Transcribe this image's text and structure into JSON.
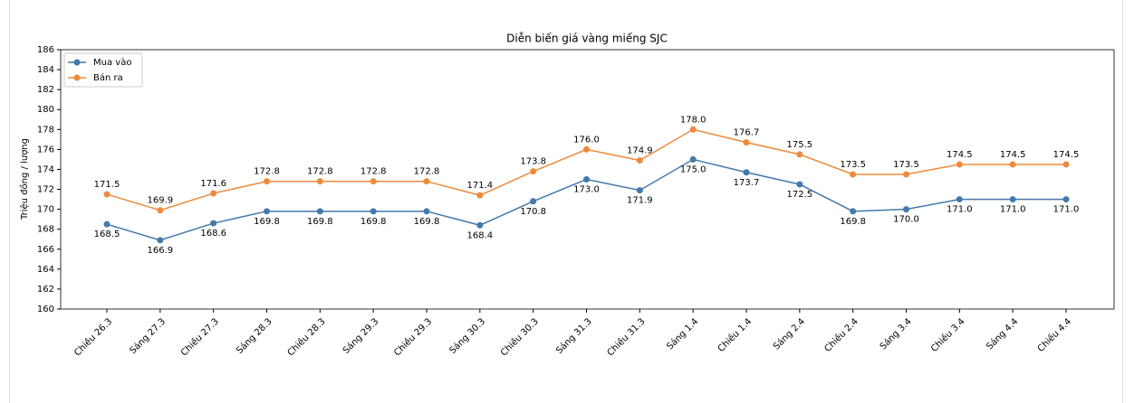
{
  "chart_data": {
    "type": "line",
    "title": "Diễn biến giá vàng miếng SJC",
    "y_label": "Triệu đồng / lượng",
    "categories": [
      "Chiều 26.3",
      "Sáng 27.3",
      "Chiều 27.3",
      "Sáng 28.3",
      "Chiều 28.3",
      "Sáng 29.3",
      "Chiều 29.3",
      "Sáng 30.3",
      "Chiều 30.3",
      "Sáng 31.3",
      "Chiều 31.3",
      "Sáng 1.4",
      "Chiều 1.4",
      "Sáng 2.4",
      "Chiều 2.4",
      "Sáng 3.4",
      "Chiều 3.4",
      "Sáng 4.4",
      "Chiều 4.4"
    ],
    "series": [
      {
        "name": "Mua vào",
        "color": "#4479ad",
        "values": [
          168.5,
          166.9,
          168.6,
          169.8,
          169.8,
          169.8,
          169.8,
          168.4,
          170.8,
          173.0,
          171.9,
          175.0,
          173.7,
          172.5,
          169.8,
          170.0,
          171.0,
          171.0,
          171.0
        ],
        "value_labels": [
          "168.5",
          "166.9",
          "168.6",
          "169.8",
          "169.8",
          "169.8",
          "169.8",
          "168.4",
          "170.8",
          "173.0",
          "171.9",
          "175.0",
          "173.7",
          "172.5",
          "169.8",
          "170.0",
          "171.0",
          "171.0",
          "171.0"
        ]
      },
      {
        "name": "Bán ra",
        "color": "#ef8a3c",
        "values": [
          171.5,
          169.9,
          171.6,
          172.8,
          172.8,
          172.8,
          172.8,
          171.4,
          173.8,
          176.0,
          174.9,
          178.0,
          176.7,
          175.5,
          173.5,
          173.5,
          174.5,
          174.5,
          174.5
        ],
        "value_labels": [
          "171.5",
          "169.9",
          "171.6",
          "172.8",
          "172.8",
          "172.8",
          "172.8",
          "171.4",
          "173.8",
          "176.0",
          "174.9",
          "178.0",
          "176.7",
          "175.5",
          "173.5",
          "173.5",
          "174.5",
          "174.5",
          "174.5"
        ]
      }
    ],
    "ylim": [
      160,
      186
    ],
    "yticks": [
      160,
      162,
      164,
      166,
      168,
      170,
      172,
      174,
      176,
      178,
      180,
      182,
      184,
      186
    ],
    "legend": "upper left"
  }
}
